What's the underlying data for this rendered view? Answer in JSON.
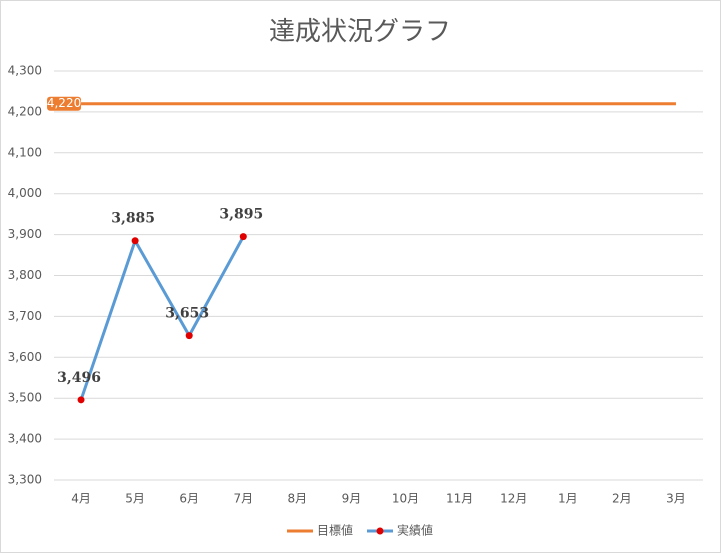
{
  "chart_data": {
    "type": "line",
    "title": "達成状況グラフ",
    "categories": [
      "4月",
      "5月",
      "6月",
      "7月",
      "8月",
      "9月",
      "10月",
      "11月",
      "12月",
      "1月",
      "2月",
      "3月"
    ],
    "series": [
      {
        "name": "目標値",
        "color": "#ED7D31",
        "values": [
          4220,
          4220,
          4220,
          4220,
          4220,
          4220,
          4220,
          4220,
          4220,
          4220,
          4220,
          4220
        ],
        "value_labels": [
          "4,220",
          null,
          null,
          null,
          null,
          null,
          null,
          null,
          null,
          null,
          null,
          null
        ]
      },
      {
        "name": "実績値",
        "color": "#5B9BD5",
        "marker_color": "#E00000",
        "values": [
          3496,
          3885,
          3653,
          3895,
          null,
          null,
          null,
          null,
          null,
          null,
          null,
          null
        ],
        "value_labels": [
          "3,496",
          "3,885",
          "3,653",
          "3,895",
          null,
          null,
          null,
          null,
          null,
          null,
          null,
          null
        ]
      }
    ],
    "ylim": [
      3300,
      4300
    ],
    "yticks": [
      {
        "value": 3300,
        "label": "3,300"
      },
      {
        "value": 3400,
        "label": "3,400"
      },
      {
        "value": 3500,
        "label": "3,500"
      },
      {
        "value": 3600,
        "label": "3,600"
      },
      {
        "value": 3700,
        "label": "3,700"
      },
      {
        "value": 3800,
        "label": "3,800"
      },
      {
        "value": 3900,
        "label": "3,900"
      },
      {
        "value": 4000,
        "label": "4,000"
      },
      {
        "value": 4100,
        "label": "4,100"
      },
      {
        "value": 4200,
        "label": "4,200"
      },
      {
        "value": 4300,
        "label": "4,300"
      }
    ],
    "grid": true,
    "legend": "bottom"
  }
}
